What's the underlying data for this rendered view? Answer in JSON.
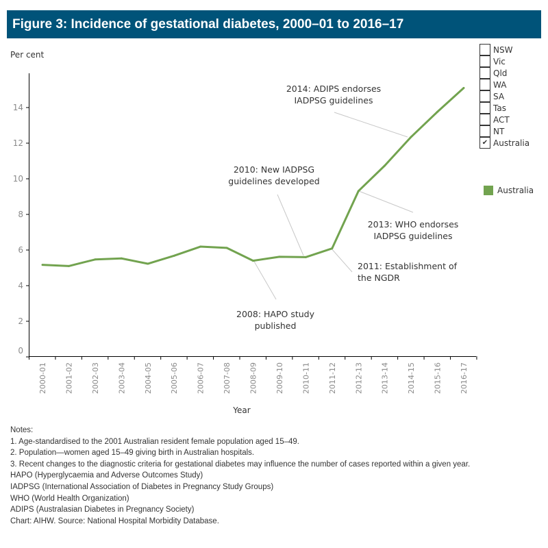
{
  "title": "Figure 3: Incidence of gestational diabetes, 2000–01 to 2016–17",
  "filters": [
    {
      "label": "NSW",
      "checked": false
    },
    {
      "label": "Vic",
      "checked": false
    },
    {
      "label": "Qld",
      "checked": false
    },
    {
      "label": "WA",
      "checked": false
    },
    {
      "label": "SA",
      "checked": false
    },
    {
      "label": "Tas",
      "checked": false
    },
    {
      "label": "ACT",
      "checked": false
    },
    {
      "label": "NT",
      "checked": false
    },
    {
      "label": "Australia",
      "checked": true
    }
  ],
  "check_mark": "✔",
  "legend": {
    "label": "Australia",
    "color": "#72a34f"
  },
  "chart_data": {
    "type": "line",
    "ylabel": "Per cent",
    "xlabel": "Year",
    "ylim": [
      0,
      15.5
    ],
    "yticks": [
      0,
      2,
      4,
      6,
      8,
      10,
      12,
      14
    ],
    "grid": false,
    "legend_position": "right",
    "categories": [
      "2000-01",
      "2001-02",
      "2002-03",
      "2003-04",
      "2004-05",
      "2005-06",
      "2006-07",
      "2007-08",
      "2008-09",
      "2009-10",
      "2010-11",
      "2011-12",
      "2012-13",
      "2013-14",
      "2014-15",
      "2015-16",
      "2016-17"
    ],
    "series": [
      {
        "name": "Australia",
        "color": "#72a34f",
        "values": [
          5.17,
          5.1,
          5.47,
          5.53,
          5.23,
          5.68,
          6.19,
          6.12,
          5.4,
          5.62,
          5.6,
          6.09,
          9.31,
          10.74,
          12.35,
          13.76,
          15.1
        ]
      }
    ],
    "annotations": [
      {
        "category": "2008-09",
        "lines": [
          "2008: HAPO study",
          "published"
        ]
      },
      {
        "category": "2010-11",
        "lines": [
          "2010: New IADPSG",
          "guidelines developed"
        ]
      },
      {
        "category": "2011-12",
        "lines": [
          "2011: Establishment of",
          "the NGDR"
        ]
      },
      {
        "category": "2012-13",
        "lines": [
          "2013: WHO endorses",
          "IADPSG guidelines"
        ]
      },
      {
        "category": "2014-15",
        "lines": [
          "2014: ADIPS endorses",
          "IADPSG guidelines"
        ]
      }
    ]
  },
  "notes": [
    "Notes:",
    "1. Age-standardised to the 2001 Australian resident female population aged 15–49.",
    "2. Population—women aged 15–49 giving birth in Australian hospitals.",
    "3. Recent changes to the diagnostic criteria for gestational diabetes may influence the number of cases reported within a given year.",
    "HAPO (Hyperglycaemia and Adverse Outcomes Study)",
    "IADPSG (International Association of Diabetes in Pregnancy Study Groups)",
    "WHO (World Health Organization)",
    "ADIPS (Australasian Diabetes in Pregnancy Society)",
    "Chart: AIHW. Source: National Hospital Morbidity Database."
  ]
}
